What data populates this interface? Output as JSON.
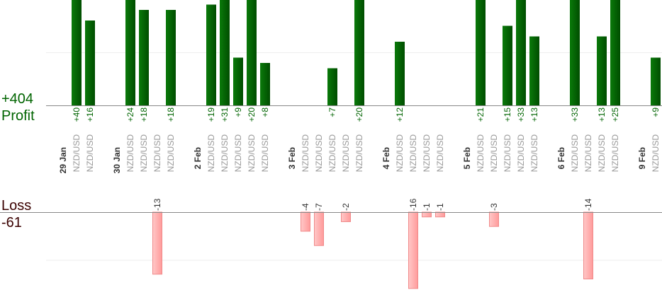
{
  "chart_data": {
    "type": "bar",
    "profit_label": "Profit",
    "profit_total": "+404",
    "loss_label": "Loss",
    "loss_total": "-61",
    "profit_color": "#006400",
    "loss_color": "#ffb3b3",
    "ylim": [
      0,
      20
    ],
    "yticks": [
      10,
      20
    ],
    "y2lim": [
      0,
      -16
    ],
    "y2ticks": [
      -10
    ],
    "grid": true,
    "groups": [
      {
        "date": "29 Jan",
        "categories": [
          "NZD/USD",
          "NZD/USD"
        ],
        "values": [
          40,
          16
        ],
        "value_labels": [
          "+40",
          "+16"
        ]
      },
      {
        "date": "30 Jan",
        "categories": [
          "NZD/USD",
          "NZD/USD",
          "NZD/USD",
          "NZD/USD"
        ],
        "values": [
          24,
          18,
          -13,
          18
        ],
        "value_labels": [
          "+24",
          "+18",
          "-13",
          "+18"
        ]
      },
      {
        "date": "2 Feb",
        "categories": [
          "NZD/USD",
          "NZD/USD",
          "NZD/USD",
          "NZD/USD",
          "NZD/USD"
        ],
        "values": [
          19,
          31,
          9,
          20,
          8
        ],
        "value_labels": [
          "+19",
          "+31",
          "+9",
          "+20",
          "+8"
        ]
      },
      {
        "date": "3 Feb",
        "categories": [
          "NZD/USD",
          "NZD/USD",
          "NZD/USD",
          "NZD/USD",
          "NZD/USD"
        ],
        "values": [
          -4,
          -7,
          7,
          -2,
          20
        ],
        "value_labels": [
          "-4",
          "-7",
          "+7",
          "-2",
          "+20"
        ]
      },
      {
        "date": "4 Feb",
        "categories": [
          "NZD/USD",
          "NZD/USD",
          "NZD/USD",
          "NZD/USD"
        ],
        "values": [
          12,
          -16,
          -1,
          -1
        ],
        "value_labels": [
          "+12",
          "-16",
          "-1",
          "-1"
        ]
      },
      {
        "date": "5 Feb",
        "categories": [
          "NZD/USD",
          "NZD/USD",
          "NZD/USD",
          "NZD/USD",
          "NZD/USD"
        ],
        "values": [
          21,
          -3,
          15,
          33,
          13
        ],
        "value_labels": [
          "+21",
          "-3",
          "+15",
          "+33",
          "+13"
        ]
      },
      {
        "date": "6 Feb",
        "categories": [
          "NZD/USD",
          "NZD/USD",
          "NZD/USD",
          "NZD/USD"
        ],
        "values": [
          33,
          -14,
          13,
          25
        ],
        "value_labels": [
          "+33",
          "-14",
          "+13",
          "+25"
        ]
      },
      {
        "date": "9 Feb",
        "categories": [
          "NZD/USD"
        ],
        "values": [
          9
        ],
        "value_labels": [
          "+9"
        ]
      }
    ]
  }
}
